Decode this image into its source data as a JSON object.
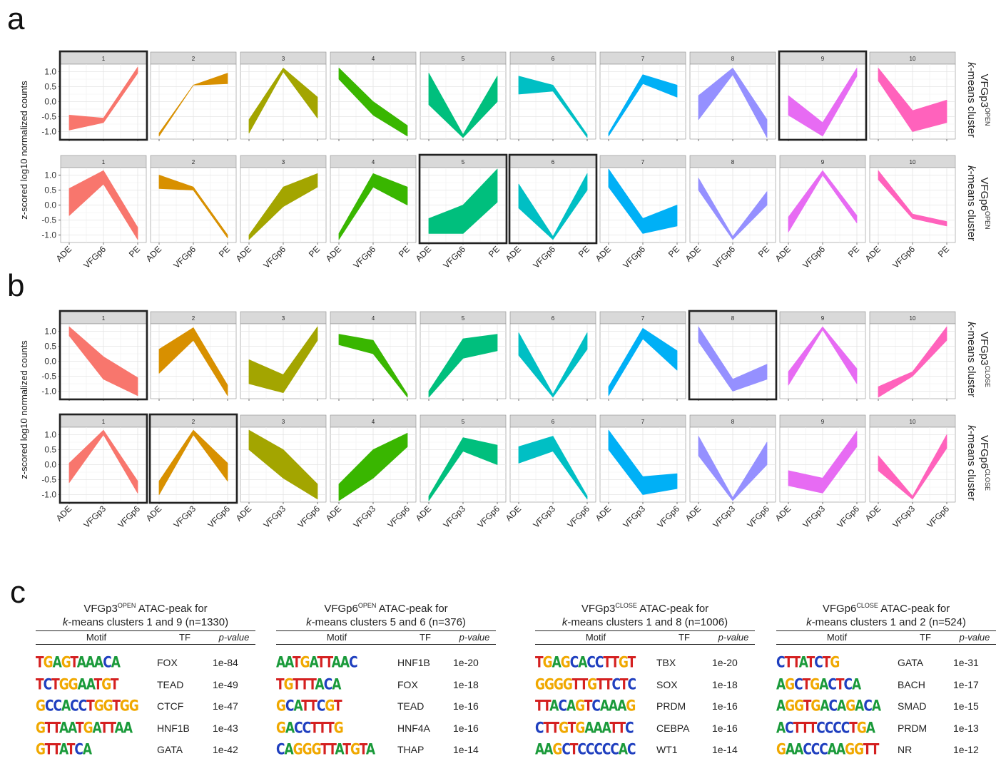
{
  "panels": {
    "a": "a",
    "b": "b",
    "c": "c"
  },
  "colors": [
    "#F8766D",
    "#D89000",
    "#A3A500",
    "#39B600",
    "#00BF7D",
    "#00BFC4",
    "#00B0F6",
    "#9590FF",
    "#E76BF3",
    "#FF62BC"
  ],
  "chart_data": [
    {
      "type": "area",
      "panel": "a",
      "ylabel": "z-scored log10 normalized counts",
      "ylim": [
        -1.25,
        1.25
      ],
      "yticks": [
        "1.0",
        "0.5",
        "0.0",
        "-0.5",
        "-1.0"
      ],
      "rows": [
        {
          "strip": {
            "prefix": "VFGp3",
            "sup": "OPEN",
            "line2_italic": "k",
            "line2": "-means cluster"
          },
          "categories": [
            "ADE",
            "VFGp6",
            "PE"
          ],
          "highlight": [
            1,
            9
          ],
          "facets": [
            {
              "label": "1",
              "lower": [
                -0.95,
                -0.7,
                0.95
              ],
              "upper": [
                -0.45,
                -0.55,
                1.15
              ]
            },
            {
              "label": "2",
              "lower": [
                -1.15,
                0.55,
                0.6
              ],
              "upper": [
                -1.05,
                0.55,
                0.95
              ]
            },
            {
              "label": "3",
              "lower": [
                -1.05,
                1.0,
                -0.55
              ],
              "upper": [
                -0.6,
                1.12,
                0.15
              ]
            },
            {
              "label": "4",
              "lower": [
                0.75,
                -0.45,
                -1.15
              ],
              "upper": [
                1.12,
                0.0,
                -0.8
              ]
            },
            {
              "label": "5",
              "lower": [
                -0.1,
                -1.2,
                0.0
              ],
              "upper": [
                0.95,
                -1.1,
                0.85
              ]
            },
            {
              "label": "6",
              "lower": [
                0.25,
                0.35,
                -1.2
              ],
              "upper": [
                0.85,
                0.55,
                -1.1
              ]
            },
            {
              "label": "7",
              "lower": [
                -1.15,
                0.6,
                0.15
              ],
              "upper": [
                -1.05,
                0.9,
                0.55
              ]
            },
            {
              "label": "8",
              "lower": [
                -0.6,
                0.9,
                -1.2
              ],
              "upper": [
                0.2,
                1.12,
                -0.6
              ]
            },
            {
              "label": "9",
              "lower": [
                -0.45,
                -1.15,
                0.85
              ],
              "upper": [
                0.2,
                -0.7,
                1.12
              ]
            },
            {
              "label": "10",
              "lower": [
                0.7,
                -1.0,
                -0.7
              ],
              "upper": [
                1.12,
                -0.3,
                0.05
              ]
            }
          ]
        },
        {
          "strip": {
            "prefix": "VFGp6",
            "sup": "OPEN",
            "line2_italic": "k",
            "line2": "-means cluster"
          },
          "categories": [
            "ADE",
            "VFGp6",
            "PE"
          ],
          "highlight": [
            5,
            6
          ],
          "facets": [
            {
              "label": "1",
              "lower": [
                -0.35,
                0.7,
                -1.15
              ],
              "upper": [
                0.55,
                1.15,
                -0.75
              ]
            },
            {
              "label": "2",
              "lower": [
                0.55,
                0.5,
                -1.1
              ],
              "upper": [
                1.0,
                0.6,
                -1.0
              ]
            },
            {
              "label": "3",
              "lower": [
                -1.15,
                -0.05,
                0.6
              ],
              "upper": [
                -1.0,
                0.6,
                1.05
              ]
            },
            {
              "label": "4",
              "lower": [
                -1.15,
                0.6,
                0.0
              ],
              "upper": [
                -0.95,
                1.05,
                0.6
              ]
            },
            {
              "label": "5",
              "lower": [
                -0.95,
                -0.95,
                0.1
              ],
              "upper": [
                -0.45,
                0.0,
                1.2
              ]
            },
            {
              "label": "6",
              "lower": [
                -0.1,
                -1.15,
                0.5
              ],
              "upper": [
                0.7,
                -1.05,
                1.05
              ]
            },
            {
              "label": "7",
              "lower": [
                0.6,
                -0.95,
                -0.7
              ],
              "upper": [
                1.2,
                -0.45,
                0.0
              ]
            },
            {
              "label": "8",
              "lower": [
                0.5,
                -1.15,
                0.0
              ],
              "upper": [
                0.9,
                -1.05,
                0.45
              ]
            },
            {
              "label": "9",
              "lower": [
                -0.9,
                1.0,
                -0.6
              ],
              "upper": [
                -0.4,
                1.15,
                -0.35
              ]
            },
            {
              "label": "10",
              "lower": [
                0.85,
                -0.45,
                -0.7
              ],
              "upper": [
                1.15,
                -0.3,
                -0.55
              ]
            }
          ]
        }
      ]
    },
    {
      "type": "area",
      "panel": "b",
      "ylabel": "z-scored log10 normalized counts",
      "ylim": [
        -1.25,
        1.25
      ],
      "yticks": [
        "1.0",
        "0.5",
        "0.0",
        "-0.5",
        "-1.0"
      ],
      "rows": [
        {
          "strip": {
            "prefix": "VFGp3",
            "sup": "CLOSE",
            "line2_italic": "k",
            "line2": "-means cluster"
          },
          "categories": [
            "ADE",
            "VFGp3",
            "VFGp6"
          ],
          "highlight": [
            1,
            8
          ],
          "facets": [
            {
              "label": "1",
              "lower": [
                0.85,
                -0.6,
                -1.15
              ],
              "upper": [
                1.15,
                0.15,
                -0.55
              ]
            },
            {
              "label": "2",
              "lower": [
                -0.4,
                0.7,
                -1.15
              ],
              "upper": [
                0.4,
                1.12,
                -0.8
              ]
            },
            {
              "label": "3",
              "lower": [
                -0.75,
                -1.05,
                0.7
              ],
              "upper": [
                0.05,
                -0.45,
                1.15
              ]
            },
            {
              "label": "4",
              "lower": [
                0.55,
                0.25,
                -1.2
              ],
              "upper": [
                0.9,
                0.7,
                -1.1
              ]
            },
            {
              "label": "5",
              "lower": [
                -1.2,
                0.1,
                0.35
              ],
              "upper": [
                -1.0,
                0.75,
                0.9
              ]
            },
            {
              "label": "6",
              "lower": [
                0.2,
                -1.2,
                0.4
              ],
              "upper": [
                0.95,
                -1.1,
                0.95
              ]
            },
            {
              "label": "7",
              "lower": [
                -1.15,
                0.75,
                -0.3
              ],
              "upper": [
                -0.85,
                1.1,
                0.35
              ]
            },
            {
              "label": "8",
              "lower": [
                0.65,
                -1.0,
                -0.6
              ],
              "upper": [
                1.15,
                -0.6,
                -0.1
              ]
            },
            {
              "label": "9",
              "lower": [
                -0.8,
                1.05,
                -0.75
              ],
              "upper": [
                -0.35,
                1.15,
                -0.25
              ]
            },
            {
              "label": "10",
              "lower": [
                -1.2,
                -0.5,
                0.7
              ],
              "upper": [
                -0.85,
                -0.35,
                1.15
              ]
            }
          ]
        },
        {
          "strip": {
            "prefix": "VFGp6",
            "sup": "CLOSE",
            "line2_italic": "k",
            "line2": "-means cluster"
          },
          "categories": [
            "ADE",
            "VFGp3",
            "VFGp6"
          ],
          "highlight": [
            1,
            2
          ],
          "facets": [
            {
              "label": "1",
              "lower": [
                -0.6,
                1.0,
                -0.95
              ],
              "upper": [
                0.05,
                1.15,
                -0.55
              ]
            },
            {
              "label": "2",
              "lower": [
                -1.0,
                1.0,
                -0.55
              ],
              "upper": [
                -0.55,
                1.15,
                0.05
              ]
            },
            {
              "label": "3",
              "lower": [
                0.5,
                -0.45,
                -1.15
              ],
              "upper": [
                1.15,
                0.5,
                -0.65
              ]
            },
            {
              "label": "4",
              "lower": [
                -1.2,
                -0.45,
                0.6
              ],
              "upper": [
                -0.65,
                0.5,
                1.05
              ]
            },
            {
              "label": "5",
              "lower": [
                -1.2,
                0.45,
                0.0
              ],
              "upper": [
                -1.05,
                0.9,
                0.65
              ]
            },
            {
              "label": "6",
              "lower": [
                0.05,
                0.45,
                -1.15
              ],
              "upper": [
                0.6,
                0.95,
                -1.05
              ]
            },
            {
              "label": "7",
              "lower": [
                0.5,
                -1.0,
                -0.8
              ],
              "upper": [
                1.15,
                -0.4,
                -0.3
              ]
            },
            {
              "label": "8",
              "lower": [
                0.3,
                -1.2,
                0.0
              ],
              "upper": [
                0.95,
                -1.1,
                0.75
              ]
            },
            {
              "label": "9",
              "lower": [
                -0.7,
                -0.95,
                0.6
              ],
              "upper": [
                -0.2,
                -0.45,
                1.12
              ]
            },
            {
              "label": "10",
              "lower": [
                -0.2,
                -1.15,
                0.55
              ],
              "upper": [
                0.3,
                -1.05,
                1.0
              ]
            }
          ]
        }
      ]
    }
  ],
  "tables": [
    {
      "title_prefix": "VFGp3",
      "title_sup": "OPEN",
      "title_suffix": " ATAC-peak for",
      "line2_italic": "k",
      "line2": "-means clusters 1 and 9 (n=1330)",
      "headers": {
        "motif": "Motif",
        "tf": "TF",
        "p": "p-value"
      },
      "rows": [
        {
          "motif": "TGAGTAAACA",
          "tf": "FOX",
          "p": "1e-84"
        },
        {
          "motif": "TCTGGAATGT",
          "tf": "TEAD",
          "p": "1e-49"
        },
        {
          "motif": "GCCACCTGGTGG",
          "tf": "CTCF",
          "p": "1e-47"
        },
        {
          "motif": "GTTAATGATTAA",
          "tf": "HNF1B",
          "p": "1e-43"
        },
        {
          "motif": "GTTATCA",
          "tf": "GATA",
          "p": "1e-42"
        }
      ]
    },
    {
      "title_prefix": "VFGp6",
      "title_sup": "OPEN",
      "title_suffix": " ATAC-peak for",
      "line2_italic": "k",
      "line2": "-means clusters 5 and 6 (n=376)",
      "headers": {
        "motif": "Motif",
        "tf": "TF",
        "p": "p-value"
      },
      "rows": [
        {
          "motif": "AATGATTAAC",
          "tf": "HNF1B",
          "p": "1e-20"
        },
        {
          "motif": "TGTTTACA",
          "tf": "FOX",
          "p": "1e-18"
        },
        {
          "motif": "GCATTCGT",
          "tf": "TEAD",
          "p": "1e-16"
        },
        {
          "motif": "GACCTTTG",
          "tf": "HNF4A",
          "p": "1e-16"
        },
        {
          "motif": "CAGGGTTATGTA",
          "tf": "THAP",
          "p": "1e-14"
        }
      ]
    },
    {
      "title_prefix": "VFGp3",
      "title_sup": "CLOSE",
      "title_suffix": " ATAC-peak for",
      "line2_italic": "k",
      "line2": "-means clusters 1 and 8 (n=1006)",
      "headers": {
        "motif": "Motif",
        "tf": "TF",
        "p": "p-value"
      },
      "rows": [
        {
          "motif": "TGAGCACCTTGT",
          "tf": "TBX",
          "p": "1e-20"
        },
        {
          "motif": "GGGGTTGTTCTC",
          "tf": "SOX",
          "p": "1e-18"
        },
        {
          "motif": "TTACAGTCAAAG",
          "tf": "PRDM",
          "p": "1e-16"
        },
        {
          "motif": "CTTGTGAAATTC",
          "tf": "CEBPA",
          "p": "1e-16"
        },
        {
          "motif": "AAGCTCCCCCAC",
          "tf": "WT1",
          "p": "1e-14"
        }
      ]
    },
    {
      "title_prefix": "VFGp6",
      "title_sup": "CLOSE",
      "title_suffix": " ATAC-peak for",
      "line2_italic": "k",
      "line2": "-means clusters 1 and 2 (n=524)",
      "headers": {
        "motif": "Motif",
        "tf": "TF",
        "p": "p-value"
      },
      "rows": [
        {
          "motif": "CTTATCTG",
          "tf": "GATA",
          "p": "1e-31"
        },
        {
          "motif": "AGCTGACTCA",
          "tf": "BACH",
          "p": "1e-17"
        },
        {
          "motif": "AGGTGACAGACA",
          "tf": "SMAD",
          "p": "1e-15"
        },
        {
          "motif": "ACTTTCCCCTGA",
          "tf": "PRDM",
          "p": "1e-13"
        },
        {
          "motif": "GAACCCAAGGTT",
          "tf": "NR",
          "p": "1e-12"
        }
      ]
    }
  ]
}
